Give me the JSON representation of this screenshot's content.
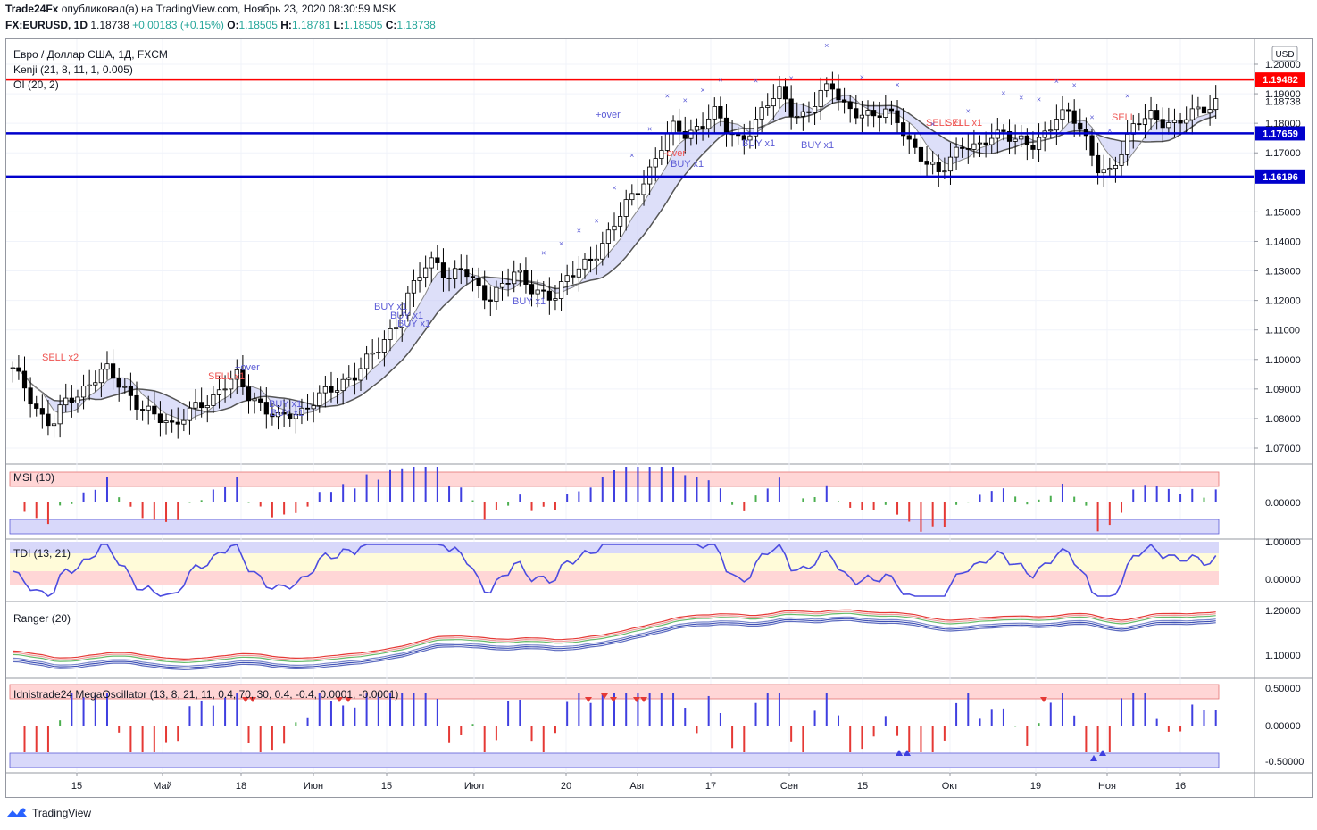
{
  "header": {
    "publisher": "Trade24Fx",
    "published_text": "опубликовал(а) на TradingView.com, Ноябрь 23, 2020 08:30:59 MSK",
    "symbol": "FX:EURUSD, 1D",
    "price": "1.18738",
    "change": "+0.00183 (+0.15%)",
    "o_label": "O:",
    "o": "1.18505",
    "h_label": "H:",
    "h": "1.18781",
    "l_label": "L:",
    "l": "1.18505",
    "c_label": "C:",
    "c": "1.18738"
  },
  "legend": {
    "title": "Евро / Доллар США, 1Д, FXCM",
    "kenji": "Kenji (21, 8, 11, 1, 0.005)",
    "oi": "OI (20, 2)"
  },
  "currency_badge": "USD",
  "price_lines": [
    {
      "value": 1.19482,
      "label": "1.19482",
      "color": "#ff0000"
    },
    {
      "value": 1.17659,
      "label": "1.17659",
      "color": "#0000cc"
    },
    {
      "value": 1.16196,
      "label": "1.16196",
      "color": "#0000cc"
    }
  ],
  "last_price_label": "1.18738",
  "chart_data": {
    "type": "candlestick",
    "symbol": "EURUSD",
    "ylim": [
      1.065,
      1.205
    ],
    "y_ticks": [
      "1.20000",
      "1.19000",
      "1.18000",
      "1.17000",
      "1.15000",
      "1.14000",
      "1.13000",
      "1.12000",
      "1.11000",
      "1.10000",
      "1.09000",
      "1.08000",
      "1.07000"
    ],
    "x_ticks": [
      "15",
      "Май",
      "18",
      "Июн",
      "15",
      "Июл",
      "20",
      "Авг",
      "17",
      "Сен",
      "15",
      "Окт",
      "19",
      "Ноя",
      "16"
    ],
    "close_path": [
      1.096,
      1.09,
      1.082,
      1.078,
      1.085,
      1.088,
      1.094,
      1.097,
      1.091,
      1.087,
      1.084,
      1.08,
      1.076,
      1.082,
      1.086,
      1.084,
      1.091,
      1.096,
      1.087,
      1.082,
      1.08,
      1.083,
      1.082,
      1.086,
      1.09,
      1.093,
      1.095,
      1.1,
      1.106,
      1.113,
      1.122,
      1.13,
      1.134,
      1.128,
      1.131,
      1.124,
      1.121,
      1.126,
      1.129,
      1.124,
      1.123,
      1.122,
      1.127,
      1.131,
      1.136,
      1.142,
      1.149,
      1.156,
      1.163,
      1.172,
      1.178,
      1.176,
      1.18,
      1.184,
      1.177,
      1.174,
      1.18,
      1.186,
      1.19,
      1.184,
      1.183,
      1.189,
      1.192,
      1.186,
      1.184,
      1.181,
      1.184,
      1.182,
      1.172,
      1.166,
      1.163,
      1.17,
      1.173,
      1.17,
      1.176,
      1.178,
      1.174,
      1.171,
      1.176,
      1.184,
      1.183,
      1.175,
      1.166,
      1.164,
      1.171,
      1.18,
      1.184,
      1.181,
      1.178,
      1.183,
      1.186,
      1.187
    ],
    "y_label": "",
    "x_label": ""
  },
  "indicators": {
    "msi": {
      "name": "MSI (10)",
      "ticks": [
        "0.00000"
      ]
    },
    "tdi": {
      "name": "TDI (13, 21)",
      "ticks": [
        "1.00000",
        "0.00000"
      ]
    },
    "ranger": {
      "name": "Ranger (20)",
      "ticks": [
        "1.20000",
        "1.10000"
      ]
    },
    "mega": {
      "name": "Idnistrade24 MegaOscillator (13, 8, 21, 11, 0.4, 70, 30, 0.4, -0.4, 0.0001, -0.0001)",
      "ticks": [
        "0.50000",
        "0.00000",
        "-0.50000"
      ]
    }
  },
  "signals": {
    "sell": [
      "SELL x2",
      "SELL x1",
      "SELL x1",
      "SELL x1",
      "SELL"
    ],
    "buy": [
      "BUY x1",
      "BUY x1",
      "BUY x1",
      "BUY x1",
      "BUY x1",
      "BUY x1",
      "BUY x1",
      "BUY x1",
      "BUY x1"
    ],
    "over": [
      "+over",
      "+over",
      "-over"
    ]
  },
  "footer": {
    "brand": "TradingView"
  },
  "colors": {
    "bull": "#ffffff",
    "bear": "#000000",
    "sell": "#ef5350",
    "buy": "#5b5bd6",
    "green_hist": "#4caf50",
    "red_hist": "#e53935",
    "blue_hist": "#3f3fe0"
  }
}
